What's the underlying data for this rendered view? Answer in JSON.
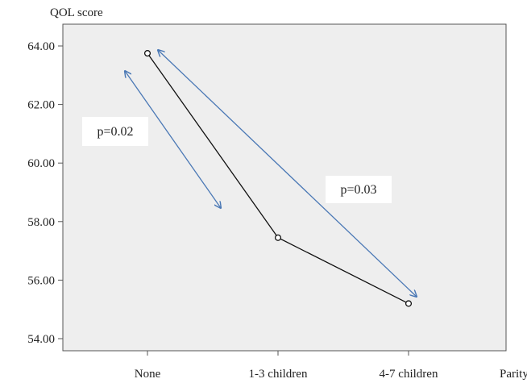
{
  "chart_data": {
    "type": "line",
    "ylabel": "QOL score",
    "xlabel": "Parity",
    "categories": [
      "None",
      "1-3 children",
      "4-7 children"
    ],
    "values": [
      63.75,
      57.45,
      55.2
    ],
    "ylim": [
      54.0,
      64.0
    ],
    "yticks": [
      "54.00",
      "56.00",
      "58.00",
      "60.00",
      "62.00",
      "64.00"
    ],
    "grid": false,
    "annotations": [
      {
        "text": "p=0.02",
        "between": [
          "None",
          "1-3 children"
        ]
      },
      {
        "text": "p=0.03",
        "between": [
          "None",
          "4-7 children"
        ]
      }
    ],
    "colors": {
      "line": "#111111",
      "arrow": "#4a78b5",
      "plot_bg": "#eeeeee",
      "axis": "#555555"
    }
  }
}
